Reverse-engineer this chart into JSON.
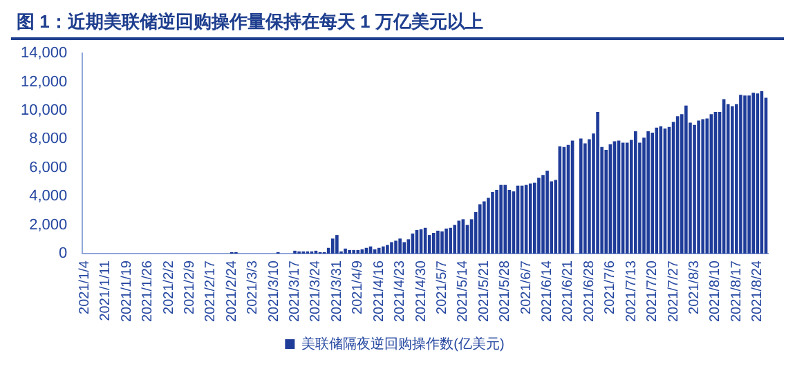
{
  "chart_data": {
    "type": "bar",
    "title": "图 1：近期美联储逆回购操作量保持在每天 1 万亿美元以上",
    "categories": [
      "2021/1/4",
      null,
      null,
      null,
      null,
      "2021/1/11",
      null,
      null,
      null,
      null,
      "2021/1/19",
      null,
      null,
      null,
      null,
      "2021/1/26",
      null,
      null,
      null,
      null,
      "2021/2/2",
      null,
      null,
      null,
      null,
      "2021/2/9",
      null,
      null,
      null,
      null,
      "2021/2/17",
      null,
      null,
      null,
      null,
      "2021/2/24",
      null,
      null,
      null,
      null,
      "2021/3/3",
      null,
      null,
      null,
      null,
      "2021/3/10",
      null,
      null,
      null,
      null,
      "2021/3/17",
      null,
      null,
      null,
      null,
      "2021/3/24",
      null,
      null,
      null,
      null,
      "2021/3/31",
      null,
      null,
      null,
      null,
      "2021/4/9",
      null,
      null,
      null,
      null,
      "2021/4/16",
      null,
      null,
      null,
      null,
      "2021/4/23",
      null,
      null,
      null,
      null,
      "2021/4/30",
      null,
      null,
      null,
      null,
      "2021/5/7",
      null,
      null,
      null,
      null,
      "2021/5/14",
      null,
      null,
      null,
      null,
      "2021/5/21",
      null,
      null,
      null,
      null,
      "2021/5/28",
      null,
      null,
      null,
      null,
      "2021/6/7",
      null,
      null,
      null,
      null,
      "2021/6/14",
      null,
      null,
      null,
      null,
      "2021/6/21",
      null,
      null,
      null,
      null,
      "2021/6/28",
      null,
      null,
      null,
      null,
      "2021/7/6",
      null,
      null,
      null,
      null,
      "2021/7/13",
      null,
      null,
      null,
      null,
      "2021/7/20",
      null,
      null,
      null,
      null,
      "2021/7/27",
      null,
      null,
      null,
      null,
      "2021/8/3",
      null,
      null,
      null,
      null,
      "2021/8/10",
      null,
      null,
      null,
      null,
      "2021/8/17",
      null,
      null,
      null,
      null,
      "2021/8/24",
      null,
      null
    ],
    "series": [
      {
        "name": "美联储隔夜逆回购操作数(亿美元)",
        "color": "#1f3c99",
        "values": [
          0,
          0,
          0,
          0,
          0,
          0,
          0,
          0,
          0,
          0,
          0,
          0,
          0,
          0,
          0,
          0,
          0,
          0,
          0,
          0,
          0,
          0,
          0,
          0,
          0,
          0,
          0,
          0,
          0,
          0,
          0,
          0,
          0,
          0,
          0,
          100,
          100,
          0,
          0,
          0,
          0,
          0,
          0,
          0,
          0,
          0,
          100,
          0,
          0,
          0,
          200,
          150,
          150,
          150,
          150,
          200,
          100,
          100,
          400,
          1050,
          1300,
          150,
          350,
          250,
          250,
          250,
          300,
          400,
          500,
          300,
          400,
          500,
          600,
          800,
          900,
          1050,
          800,
          1000,
          1400,
          1650,
          1700,
          1800,
          1300,
          1450,
          1600,
          1550,
          1750,
          1800,
          2000,
          2300,
          2400,
          2000,
          2400,
          2900,
          3450,
          3650,
          3900,
          4300,
          4450,
          4800,
          4800,
          4450,
          4350,
          4750,
          4750,
          4800,
          4900,
          4950,
          5300,
          5500,
          5800,
          5050,
          5150,
          7500,
          7450,
          7600,
          7900,
          null,
          8050,
          7700,
          8000,
          8400,
          9900,
          7450,
          7250,
          7650,
          7850,
          7900,
          7750,
          7750,
          7950,
          8550,
          7750,
          8100,
          8550,
          8450,
          8800,
          8900,
          8750,
          8850,
          9200,
          9600,
          9750,
          10350,
          9150,
          9000,
          9300,
          9400,
          9450,
          9750,
          9900,
          9900,
          10800,
          10450,
          10300,
          10450,
          11100,
          11050,
          11050,
          11250,
          11200,
          11350,
          10900
        ]
      }
    ],
    "ylim": [
      0,
      14000
    ],
    "yticks": [
      {
        "value": 0,
        "label": "0"
      },
      {
        "value": 2000,
        "label": "2,000"
      },
      {
        "value": 4000,
        "label": "4,000"
      },
      {
        "value": 6000,
        "label": "6,000"
      },
      {
        "value": 8000,
        "label": "8,000"
      },
      {
        "value": 10000,
        "label": "10,000"
      },
      {
        "value": 12000,
        "label": "12,000"
      },
      {
        "value": 14000,
        "label": "14,000"
      }
    ],
    "grid": false,
    "legend": "bottom"
  }
}
